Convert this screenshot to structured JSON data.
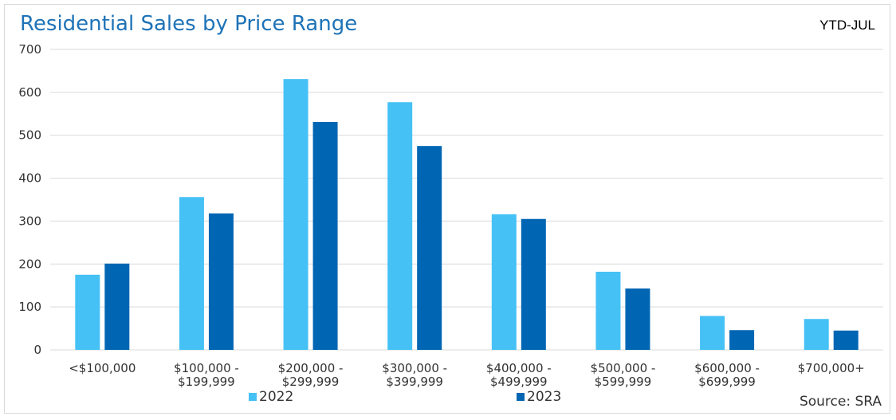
{
  "chart_data": {
    "type": "bar",
    "title": "Residential Sales by Price Range",
    "period_label": "YTD-JUL",
    "source_label": "Source: SRA",
    "categories": [
      [
        "<$100,000"
      ],
      [
        "$100,000 -",
        "$199,999"
      ],
      [
        "$200,000 -",
        "$299,999"
      ],
      [
        "$300,000 -",
        "$399,999"
      ],
      [
        "$400,000 -",
        "$499,999"
      ],
      [
        "$500,000 -",
        "$599,999"
      ],
      [
        "$600,000 -",
        "$699,999"
      ],
      [
        "$700,000+"
      ]
    ],
    "series": [
      {
        "name": "2022",
        "color": "#45c1f5",
        "values": [
          175,
          356,
          631,
          577,
          316,
          182,
          79,
          72
        ]
      },
      {
        "name": "2023",
        "color": "#0066b3",
        "values": [
          201,
          318,
          531,
          475,
          305,
          143,
          46,
          45
        ]
      }
    ],
    "ylim": [
      0,
      700
    ],
    "yticks": [
      0,
      100,
      200,
      300,
      400,
      500,
      600,
      700
    ],
    "grid": true,
    "grid_color": "#d9d9d9",
    "legend_position": "bottom"
  }
}
